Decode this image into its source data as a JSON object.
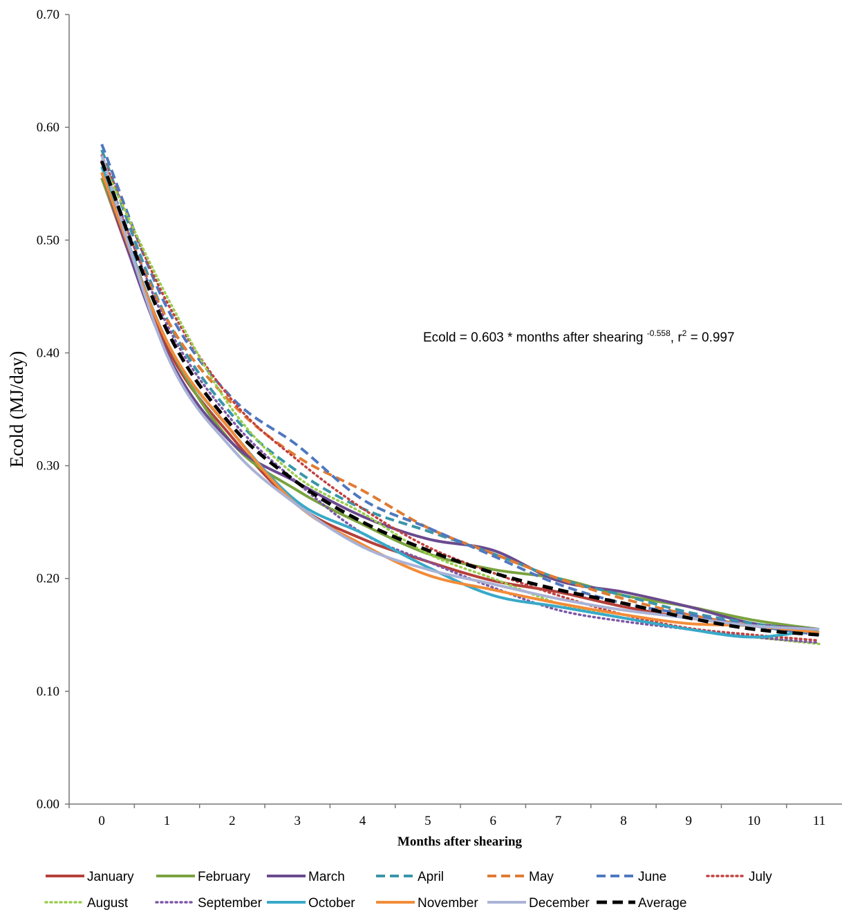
{
  "chart_data": {
    "type": "line",
    "title": "",
    "xlabel": "Months  after  shearing",
    "ylabel": "Ecold (MJ/day)",
    "xlim": [
      -0.5,
      11.35
    ],
    "ylim": [
      0,
      0.7
    ],
    "x": [
      0,
      1,
      2,
      3,
      4,
      5,
      6,
      7,
      8,
      9,
      10,
      11
    ],
    "y_ticks": [
      "0.00",
      "0.10",
      "0.20",
      "0.30",
      "0.40",
      "0.50",
      "0.60",
      "0.70"
    ],
    "y_tick_values": [
      0,
      0.1,
      0.2,
      0.3,
      0.4,
      0.5,
      0.6,
      0.7
    ],
    "x_ticks": [
      "0",
      "1",
      "2",
      "3",
      "4",
      "5",
      "6",
      "7",
      "8",
      "9",
      "10",
      "11"
    ],
    "annotation": {
      "prefix": "Ecold = 0.603  * months after shearing ",
      "exponent": "-0.558",
      "middle": ", r",
      "r_sup": "2",
      "suffix": " = 0.997"
    },
    "legend_position": "bottom",
    "series": [
      {
        "name": "January",
        "color": "#b5403a",
        "dash": "solid",
        "values": [
          0.555,
          0.405,
          0.325,
          0.265,
          0.235,
          0.215,
          0.198,
          0.188,
          0.175,
          0.165,
          0.158,
          0.152
        ]
      },
      {
        "name": "February",
        "color": "#7aa23e",
        "dash": "solid",
        "values": [
          0.555,
          0.41,
          0.32,
          0.278,
          0.248,
          0.222,
          0.208,
          0.2,
          0.185,
          0.175,
          0.163,
          0.155
        ]
      },
      {
        "name": "March",
        "color": "#6a4a8f",
        "dash": "solid",
        "values": [
          0.56,
          0.4,
          0.32,
          0.285,
          0.255,
          0.235,
          0.225,
          0.198,
          0.188,
          0.175,
          0.16,
          0.155
        ]
      },
      {
        "name": "April",
        "color": "#3a95a8",
        "dash": "dash",
        "values": [
          0.58,
          0.43,
          0.345,
          0.295,
          0.262,
          0.242,
          0.222,
          0.2,
          0.185,
          0.17,
          0.16,
          0.152
        ]
      },
      {
        "name": "May",
        "color": "#e07b33",
        "dash": "dash",
        "values": [
          0.565,
          0.43,
          0.355,
          0.308,
          0.278,
          0.245,
          0.222,
          0.2,
          0.182,
          0.168,
          0.158,
          0.152
        ]
      },
      {
        "name": "June",
        "color": "#4f78bf",
        "dash": "dash",
        "values": [
          0.585,
          0.44,
          0.36,
          0.318,
          0.27,
          0.245,
          0.22,
          0.195,
          0.178,
          0.168,
          0.158,
          0.15
        ]
      },
      {
        "name": "July",
        "color": "#c2413e",
        "dash": "dot",
        "values": [
          0.575,
          0.445,
          0.358,
          0.305,
          0.262,
          0.228,
          0.205,
          0.185,
          0.168,
          0.156,
          0.15,
          0.145
        ]
      },
      {
        "name": "August",
        "color": "#9acd4e",
        "dash": "dot",
        "values": [
          0.57,
          0.45,
          0.35,
          0.29,
          0.258,
          0.222,
          0.2,
          0.178,
          0.165,
          0.155,
          0.148,
          0.142
        ]
      },
      {
        "name": "September",
        "color": "#7c58a6",
        "dash": "dot",
        "values": [
          0.57,
          0.425,
          0.34,
          0.285,
          0.24,
          0.215,
          0.192,
          0.172,
          0.162,
          0.155,
          0.148,
          0.143
        ]
      },
      {
        "name": "October",
        "color": "#38a9c8",
        "dash": "solid",
        "values": [
          0.565,
          0.41,
          0.33,
          0.268,
          0.24,
          0.21,
          0.185,
          0.175,
          0.165,
          0.155,
          0.148,
          0.155
        ]
      },
      {
        "name": "November",
        "color": "#f28c38",
        "dash": "solid",
        "values": [
          0.56,
          0.41,
          0.33,
          0.265,
          0.23,
          0.203,
          0.19,
          0.178,
          0.168,
          0.16,
          0.158,
          0.152
        ]
      },
      {
        "name": "December",
        "color": "#a9b3d6",
        "dash": "solid",
        "values": [
          0.575,
          0.398,
          0.315,
          0.265,
          0.228,
          0.208,
          0.195,
          0.182,
          0.172,
          0.165,
          0.158,
          0.155
        ]
      },
      {
        "name": "Average",
        "color": "#000000",
        "dash": "bigdash",
        "values": [
          0.57,
          0.42,
          0.335,
          0.285,
          0.25,
          0.225,
          0.205,
          0.19,
          0.178,
          0.165,
          0.155,
          0.15
        ]
      }
    ]
  }
}
